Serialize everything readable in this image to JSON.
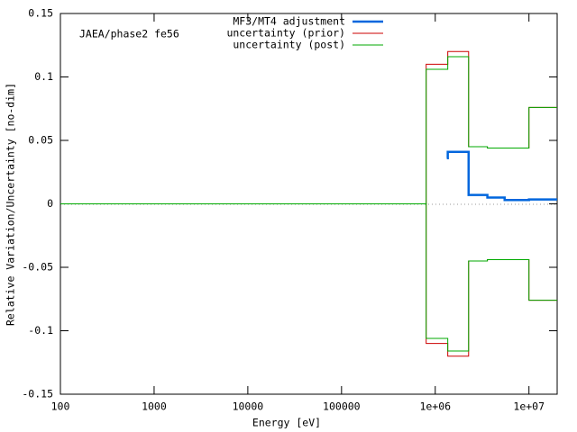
{
  "chart_data": {
    "type": "line",
    "title": "JAEA/phase2 fe56",
    "x_label": "Energy [eV]",
    "y_label": "Relative Variation/Uncertainty [no-dim]",
    "xscale": "log",
    "line_style": "steps",
    "xlim": [
      100,
      20000000
    ],
    "xticks": [
      100,
      1000,
      10000,
      100000,
      {
        "value": 1000000,
        "label": "1e+06"
      },
      {
        "value": 10000000,
        "label": "1e+07"
      }
    ],
    "ylim": [
      -0.15,
      0.15
    ],
    "yticks": [
      0.15,
      0.1,
      0.05,
      0,
      -0.05,
      -0.1,
      -0.15
    ],
    "legend": "top-center",
    "series": [
      {
        "name": "MF3/MT4 adjustment",
        "color": "#0066dd",
        "width": 2.5,
        "x": [
          1330000,
          1360000,
          2270000,
          3600000,
          5500000,
          10000000,
          20000000
        ],
        "values": [
          0.036,
          0.041,
          0.007,
          0.005,
          0.003,
          0.0035,
          0.0035
        ]
      },
      {
        "name": "uncertainty (prior)",
        "color": "#cc0000",
        "width": 1,
        "x": [
          100,
          800000,
          1360000,
          2270000,
          3600000,
          10000000,
          20000000
        ],
        "values": [
          0,
          0.11,
          0.12,
          0.045,
          0.044,
          0.076,
          0.076
        ],
        "lower_values": [
          0,
          -0.11,
          -0.12,
          -0.045,
          -0.044,
          -0.076,
          -0.076
        ]
      },
      {
        "name": "uncertainty (post)",
        "color": "#00aa00",
        "width": 1,
        "x": [
          100,
          800000,
          1360000,
          2270000,
          3600000,
          10000000,
          20000000
        ],
        "values": [
          0,
          0.106,
          0.116,
          0.045,
          0.044,
          0.076,
          0.076
        ],
        "lower_values": [
          0,
          -0.106,
          -0.116,
          -0.045,
          -0.044,
          -0.076,
          -0.076
        ]
      }
    ]
  }
}
